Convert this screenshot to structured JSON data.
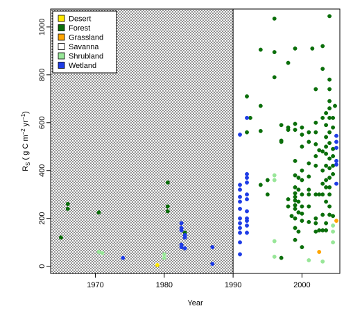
{
  "chart_data": {
    "type": "scatter",
    "xlabel": "Year",
    "ylabel_parts": {
      "main": "R",
      "sub": "S",
      "units_pre": " ( g C m",
      "units_mid": " yr",
      "exp1": "−2",
      "exp2": "−1",
      "close": ")"
    },
    "xlim": [
      1963.5,
      2005.5
    ],
    "ylim": [
      -30,
      1075
    ],
    "x_ticks": [
      1970,
      1980,
      1990,
      2000
    ],
    "y_ticks": [
      0,
      200,
      400,
      600,
      800,
      1000
    ],
    "shaded_region": {
      "x_end": 1990,
      "pattern": "stippled"
    },
    "legend": {
      "position": "top-left"
    },
    "colors": {
      "Desert": "#ffe800",
      "Forest": "#0a6e0a",
      "Grassland": "#ffa500",
      "Savanna": "#ffffff",
      "Shrubland": "#98e698",
      "Wetland": "#1e3ce6"
    },
    "series": [
      {
        "name": "Desert",
        "points": [
          [
            1979,
            5
          ]
        ]
      },
      {
        "name": "Forest",
        "points": [
          [
            1965,
            120
          ],
          [
            1966,
            260
          ],
          [
            1966,
            240
          ],
          [
            1970.5,
            225
          ],
          [
            1980.5,
            350
          ],
          [
            1980.5,
            250
          ],
          [
            1980.5,
            230
          ],
          [
            1983,
            140
          ],
          [
            1992,
            710
          ],
          [
            1992,
            560
          ],
          [
            1992.5,
            620
          ],
          [
            1994,
            670
          ],
          [
            1994,
            565
          ],
          [
            1994,
            905
          ],
          [
            1994,
            340
          ],
          [
            1995,
            300
          ],
          [
            1995,
            360
          ],
          [
            1996,
            1035
          ],
          [
            1996,
            790
          ],
          [
            1996,
            895
          ],
          [
            1997,
            525
          ],
          [
            1997,
            590
          ],
          [
            1997,
            520
          ],
          [
            1997,
            35
          ],
          [
            1998,
            850
          ],
          [
            1998,
            580
          ],
          [
            1998,
            570
          ],
          [
            1998,
            280
          ],
          [
            1998,
            250
          ],
          [
            1998.5,
            210
          ],
          [
            1999,
            910
          ],
          [
            1999,
            595
          ],
          [
            1999,
            570
          ],
          [
            1999,
            440
          ],
          [
            1999,
            380
          ],
          [
            1999,
            330
          ],
          [
            1999,
            305
          ],
          [
            1999,
            290
          ],
          [
            1999,
            275
          ],
          [
            1999,
            255
          ],
          [
            1999,
            240
          ],
          [
            1999,
            200
          ],
          [
            1999,
            160
          ],
          [
            1999,
            110
          ],
          [
            1999.5,
            370
          ],
          [
            1999.5,
            320
          ],
          [
            1999.5,
            270
          ],
          [
            1999.5,
            225
          ],
          [
            1999.5,
            145
          ],
          [
            2000,
            580
          ],
          [
            2000,
            550
          ],
          [
            2000,
            500
          ],
          [
            2000,
            400
          ],
          [
            2000,
            360
          ],
          [
            2000,
            300
          ],
          [
            2000,
            250
          ],
          [
            2000,
            220
          ],
          [
            2000,
            190
          ],
          [
            2000,
            80
          ],
          [
            2001,
            560
          ],
          [
            2001,
            520
          ],
          [
            2001,
            430
          ],
          [
            2001,
            375
          ],
          [
            2001,
            320
          ],
          [
            2001,
            300
          ],
          [
            2001,
            250
          ],
          [
            2001,
            185
          ],
          [
            2001.5,
            910
          ],
          [
            2002,
            740
          ],
          [
            2002,
            600
          ],
          [
            2002,
            560
          ],
          [
            2002,
            510
          ],
          [
            2002,
            460
          ],
          [
            2002,
            420
          ],
          [
            2002,
            300
          ],
          [
            2002,
            200
          ],
          [
            2002,
            180
          ],
          [
            2002,
            145
          ],
          [
            2002.5,
            485
          ],
          [
            2002.5,
            300
          ],
          [
            2002.5,
            150
          ],
          [
            2003,
            920
          ],
          [
            2003,
            825
          ],
          [
            2003,
            620
          ],
          [
            2003,
            480
          ],
          [
            2003,
            400
          ],
          [
            2003,
            345
          ],
          [
            2003,
            300
          ],
          [
            2003,
            215
          ],
          [
            2003,
            150
          ],
          [
            2003.5,
            640
          ],
          [
            2003.5,
            590
          ],
          [
            2003.5,
            540
          ],
          [
            2003.5,
            500
          ],
          [
            2003.5,
            470
          ],
          [
            2003.5,
            420
          ],
          [
            2003.5,
            360
          ],
          [
            2003.5,
            330
          ],
          [
            2003.5,
            270
          ],
          [
            2003.5,
            180
          ],
          [
            2003.5,
            150
          ],
          [
            2004,
            1045
          ],
          [
            2004,
            780
          ],
          [
            2004,
            740
          ],
          [
            2004,
            690
          ],
          [
            2004,
            660
          ],
          [
            2004,
            620
          ],
          [
            2004,
            560
          ],
          [
            2004,
            515
          ],
          [
            2004,
            450
          ],
          [
            2004,
            410
          ],
          [
            2004,
            370
          ],
          [
            2004,
            330
          ],
          [
            2004,
            300
          ],
          [
            2004,
            250
          ],
          [
            2004,
            215
          ],
          [
            2004.5,
            620
          ],
          [
            2004.5,
            580
          ],
          [
            2004.5,
            490
          ],
          [
            2004.5,
            460
          ],
          [
            2004.5,
            420
          ],
          [
            2004.5,
            385
          ],
          [
            2004.5,
            210
          ],
          [
            2004.8,
            670
          ]
        ]
      },
      {
        "name": "Grassland",
        "points": [
          [
            2002.5,
            60
          ],
          [
            2005,
            190
          ]
        ]
      },
      {
        "name": "Savanna",
        "points": []
      },
      {
        "name": "Shrubland",
        "points": [
          [
            1970.5,
            60
          ],
          [
            1971,
            55
          ],
          [
            1980,
            50
          ],
          [
            1980,
            35
          ],
          [
            1996,
            380
          ],
          [
            1996,
            360
          ],
          [
            1996,
            40
          ],
          [
            1996,
            105
          ],
          [
            2001,
            25
          ],
          [
            2003,
            20
          ],
          [
            2004.5,
            170
          ],
          [
            2004.5,
            145
          ],
          [
            2004.5,
            100
          ]
        ]
      },
      {
        "name": "Wetland",
        "points": [
          [
            1974,
            35
          ],
          [
            1982.5,
            180
          ],
          [
            1982.5,
            160
          ],
          [
            1982.5,
            150
          ],
          [
            1982.5,
            90
          ],
          [
            1982.5,
            80
          ],
          [
            1983,
            130
          ],
          [
            1983,
            120
          ],
          [
            1983,
            75
          ],
          [
            1987,
            80
          ],
          [
            1987,
            10
          ],
          [
            1991,
            550
          ],
          [
            1991,
            340
          ],
          [
            1991,
            320
          ],
          [
            1991,
            290
          ],
          [
            1991,
            270
          ],
          [
            1991,
            240
          ],
          [
            1991,
            200
          ],
          [
            1991,
            180
          ],
          [
            1991,
            160
          ],
          [
            1991,
            140
          ],
          [
            1991,
            100
          ],
          [
            1991,
            50
          ],
          [
            1992,
            620
          ],
          [
            1992,
            385
          ],
          [
            1992,
            370
          ],
          [
            1992,
            350
          ],
          [
            1992,
            300
          ],
          [
            1992,
            280
          ],
          [
            1992,
            230
          ],
          [
            1992,
            200
          ],
          [
            1992,
            190
          ],
          [
            1992,
            170
          ],
          [
            1992,
            140
          ],
          [
            2005,
            545
          ],
          [
            2005,
            520
          ],
          [
            2005,
            495
          ],
          [
            2005,
            440
          ],
          [
            2005,
            425
          ],
          [
            2005,
            345
          ]
        ]
      }
    ]
  }
}
